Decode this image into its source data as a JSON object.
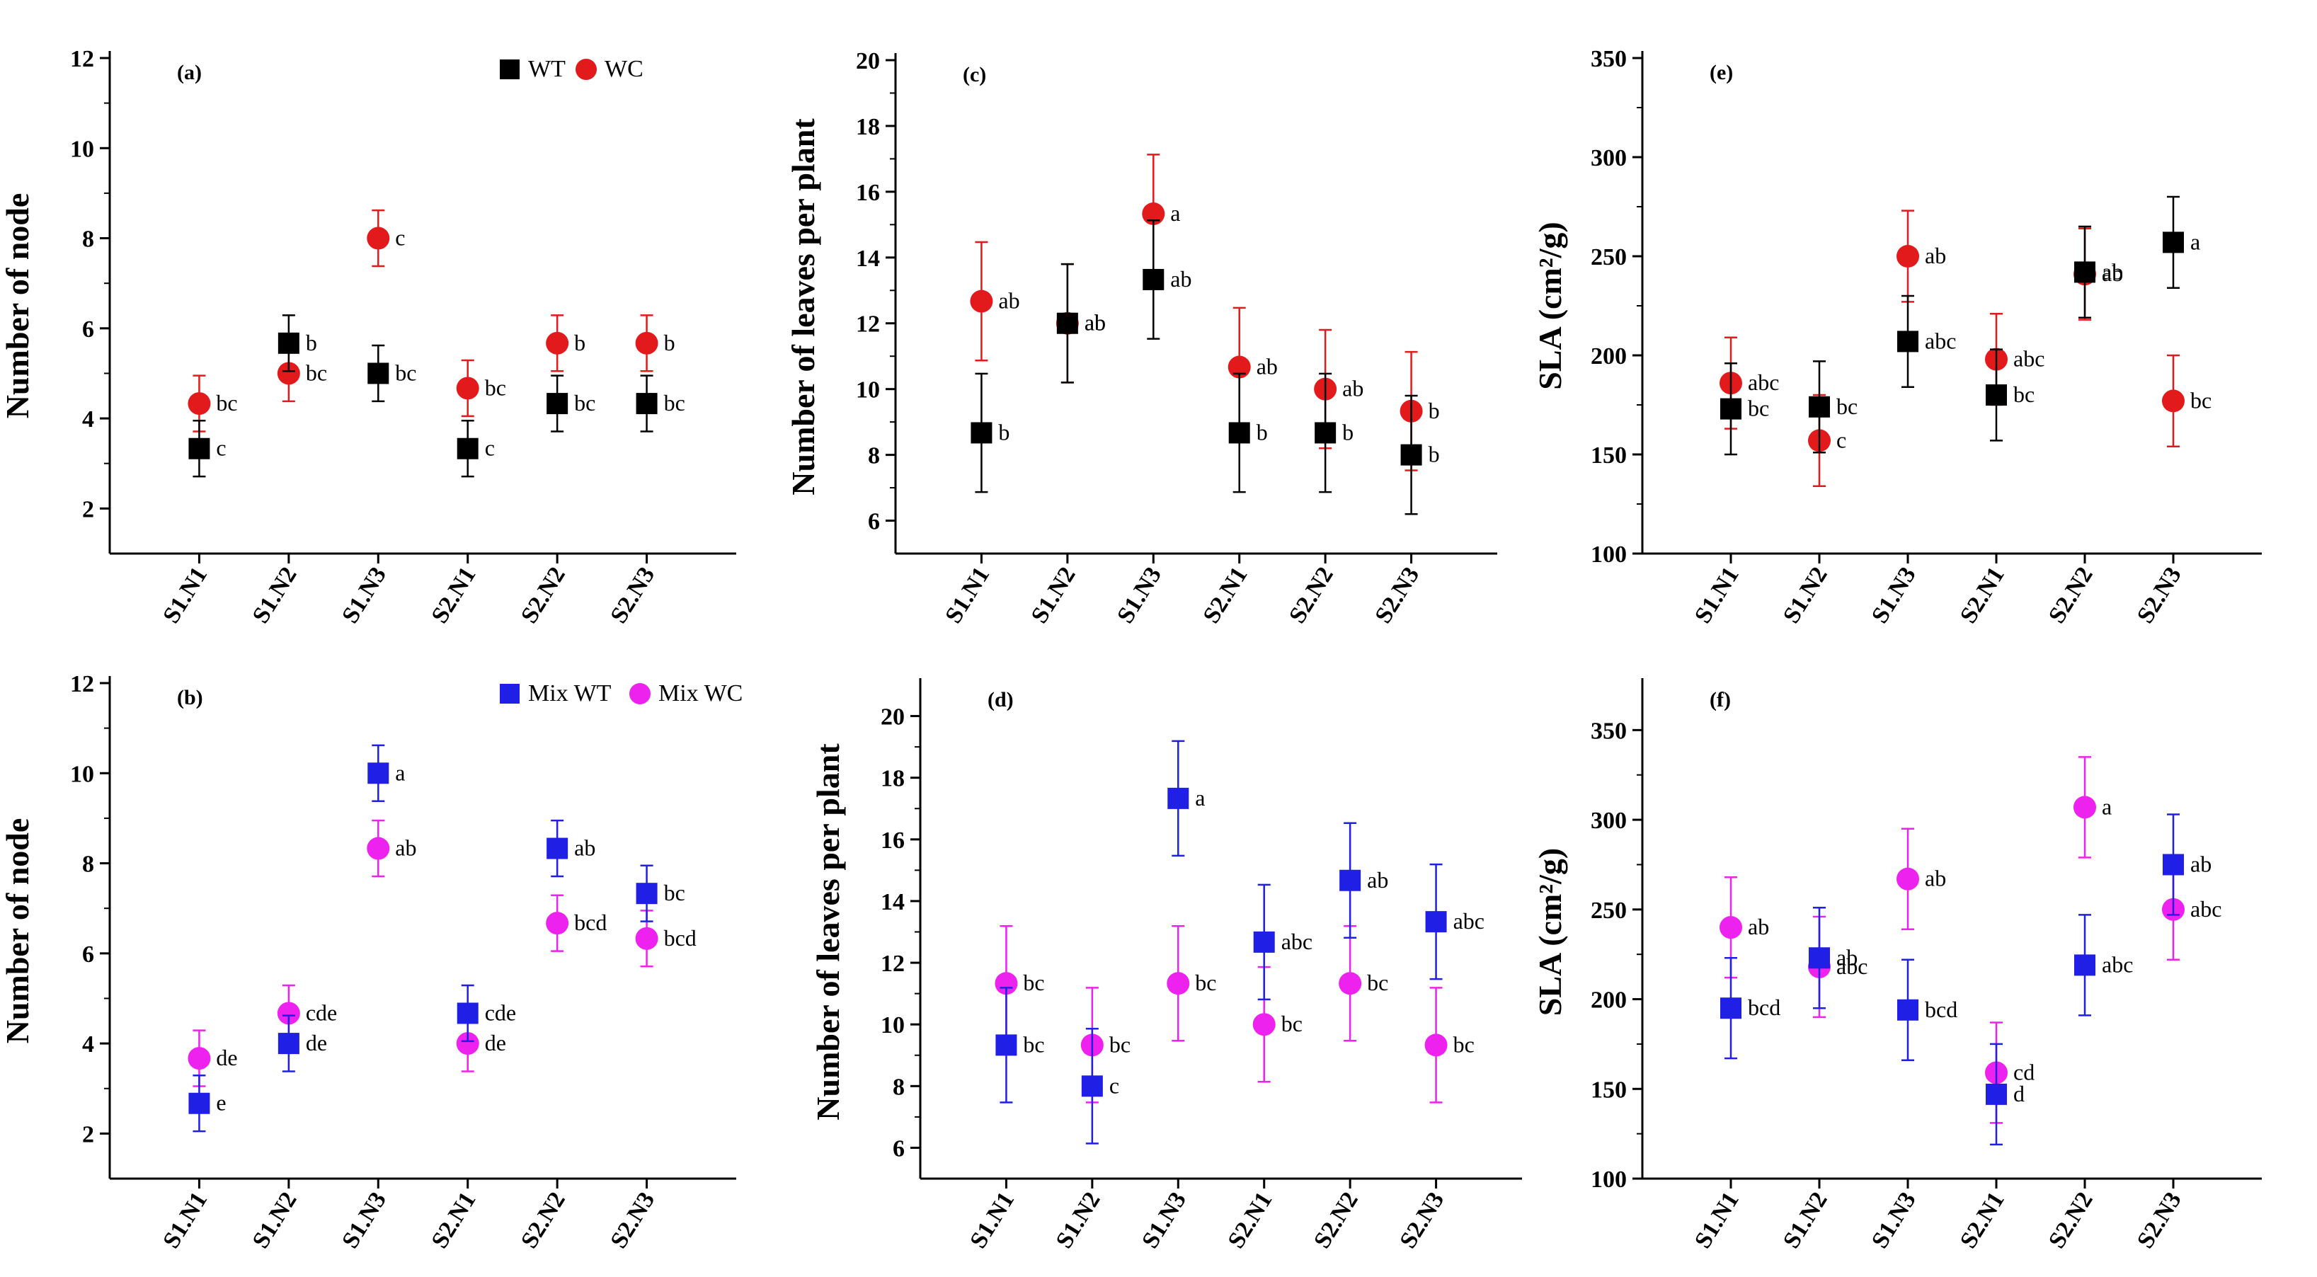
{
  "figure": {
    "categories": [
      "S1.N1",
      "S1.N2",
      "S1.N3",
      "S2.N1",
      "S2.N2",
      "S2.N3"
    ]
  },
  "chart_data": [
    {
      "type": "scatter",
      "panel_label": "(a)",
      "ylabel": "Number of node",
      "ylim": [
        1,
        12
      ],
      "yticks": [
        2,
        4,
        6,
        8,
        10,
        12
      ],
      "categories": [
        "S1.N1",
        "S1.N2",
        "S1.N3",
        "S2.N1",
        "S2.N2",
        "S2.N3"
      ],
      "legend": [
        "WT",
        "WC"
      ],
      "series": [
        {
          "name": "WT",
          "marker": "square",
          "color": "#000000",
          "values": [
            3.33,
            5.67,
            5.0,
            3.33,
            4.33,
            4.33
          ],
          "errors": [
            0.62,
            0.62,
            0.62,
            0.62,
            0.62,
            0.62
          ],
          "letters": [
            "c",
            "b",
            "bc",
            "c",
            "bc",
            "bc"
          ]
        },
        {
          "name": "WC",
          "marker": "circle",
          "color": "#e31a1c",
          "values": [
            4.33,
            5.0,
            8.0,
            4.67,
            5.67,
            5.67
          ],
          "errors": [
            0.62,
            0.62,
            0.62,
            0.62,
            0.62,
            0.62
          ],
          "letters": [
            "bc",
            "bc",
            "c",
            "bc",
            "b",
            "b"
          ]
        }
      ]
    },
    {
      "type": "scatter",
      "panel_label": "(b)",
      "ylabel": "Number of node",
      "ylim": [
        1,
        12
      ],
      "yticks": [
        2,
        4,
        6,
        8,
        10,
        12
      ],
      "categories": [
        "S1.N1",
        "S1.N2",
        "S1.N3",
        "S2.N1",
        "S2.N2",
        "S2.N3"
      ],
      "legend": [
        "Mix WT",
        "Mix WC"
      ],
      "series": [
        {
          "name": "Mix WT",
          "marker": "square",
          "color": "#1f1fe6",
          "values": [
            2.67,
            4.0,
            10.0,
            4.67,
            8.33,
            7.33
          ],
          "errors": [
            0.62,
            0.62,
            0.62,
            0.62,
            0.62,
            0.62
          ],
          "letters": [
            "e",
            "de",
            "a",
            "cde",
            "ab",
            "bc"
          ]
        },
        {
          "name": "Mix WC",
          "marker": "circle",
          "color": "#ee22ee",
          "values": [
            3.67,
            4.67,
            8.33,
            4.0,
            6.67,
            6.33
          ],
          "errors": [
            0.62,
            0.62,
            0.62,
            0.62,
            0.62,
            0.62
          ],
          "letters": [
            "de",
            "cde",
            "ab",
            "de",
            "bcd",
            "bcd"
          ]
        }
      ]
    },
    {
      "type": "scatter",
      "panel_label": "(c)",
      "ylabel": "Number of leaves per plant",
      "ylim": [
        5,
        20
      ],
      "yticks": [
        6,
        8,
        10,
        12,
        14,
        16,
        18,
        20
      ],
      "categories": [
        "S1.N1",
        "S1.N2",
        "S1.N3",
        "S2.N1",
        "S2.N2",
        "S2.N3"
      ],
      "series": [
        {
          "name": "WT",
          "marker": "square",
          "color": "#000000",
          "values": [
            8.67,
            12.0,
            13.33,
            8.67,
            8.67,
            8.0
          ],
          "errors": [
            1.8,
            1.8,
            1.8,
            1.8,
            1.8,
            1.8
          ],
          "letters": [
            "b",
            "ab",
            "ab",
            "b",
            "b",
            "b"
          ]
        },
        {
          "name": "WC",
          "marker": "circle",
          "color": "#e31a1c",
          "values": [
            12.67,
            12.0,
            15.33,
            10.67,
            10.0,
            9.33
          ],
          "errors": [
            1.8,
            1.8,
            1.8,
            1.8,
            1.8,
            1.8
          ],
          "letters": [
            "ab",
            "ab",
            "a",
            "ab",
            "ab",
            "b"
          ]
        }
      ]
    },
    {
      "type": "scatter",
      "panel_label": "(d)",
      "ylabel": "Number of leaves per plant",
      "ylim": [
        5,
        21
      ],
      "yticks": [
        6,
        8,
        10,
        12,
        14,
        16,
        18,
        20
      ],
      "categories": [
        "S1.N1",
        "S1.N2",
        "S1.N3",
        "S2.N1",
        "S2.N2",
        "S2.N3"
      ],
      "series": [
        {
          "name": "Mix WT",
          "marker": "square",
          "color": "#1f1fe6",
          "values": [
            9.33,
            8.0,
            17.33,
            12.67,
            14.67,
            13.33
          ],
          "errors": [
            1.86,
            1.86,
            1.86,
            1.86,
            1.86,
            1.86
          ],
          "letters": [
            "bc",
            "c",
            "a",
            "abc",
            "ab",
            "abc"
          ]
        },
        {
          "name": "Mix WC",
          "marker": "circle",
          "color": "#ee22ee",
          "values": [
            11.33,
            9.33,
            11.33,
            10.0,
            11.33,
            9.33
          ],
          "errors": [
            1.86,
            1.86,
            1.86,
            1.86,
            1.86,
            1.86
          ],
          "letters": [
            "bc",
            "bc",
            "bc",
            "bc",
            "bc",
            "bc"
          ]
        }
      ]
    },
    {
      "type": "scatter",
      "panel_label": "(e)",
      "ylabel": "SLA (cm²/g)",
      "ylim": [
        100,
        350
      ],
      "yticks": [
        100,
        150,
        200,
        250,
        300,
        350
      ],
      "categories": [
        "S1.N1",
        "S1.N2",
        "S1.N3",
        "S2.N1",
        "S2.N2",
        "S2.N3"
      ],
      "series": [
        {
          "name": "WT",
          "marker": "square",
          "color": "#000000",
          "values": [
            173,
            174,
            207,
            180,
            242,
            257
          ],
          "errors": [
            23,
            23,
            23,
            23,
            23,
            23
          ],
          "letters": [
            "bc",
            "bc",
            "abc",
            "bc",
            "ab",
            "a"
          ]
        },
        {
          "name": "WC",
          "marker": "circle",
          "color": "#e31a1c",
          "values": [
            186,
            157,
            250,
            198,
            241,
            177
          ],
          "errors": [
            23,
            23,
            23,
            23,
            23,
            23
          ],
          "letters": [
            "abc",
            "c",
            "ab",
            "abc",
            "ab",
            "bc"
          ]
        }
      ]
    },
    {
      "type": "scatter",
      "panel_label": "(f)",
      "ylabel": "SLA (cm²/g)",
      "ylim": [
        100,
        375
      ],
      "yticks": [
        100,
        150,
        200,
        250,
        300,
        350
      ],
      "categories": [
        "S1.N1",
        "S1.N2",
        "S1.N3",
        "S2.N1",
        "S2.N2",
        "S2.N3"
      ],
      "series": [
        {
          "name": "Mix WT",
          "marker": "square",
          "color": "#1f1fe6",
          "values": [
            195,
            223,
            194,
            147,
            219,
            275
          ],
          "errors": [
            28,
            28,
            28,
            28,
            28,
            28
          ],
          "letters": [
            "bcd",
            "ab",
            "bcd",
            "d",
            "abc",
            "ab"
          ]
        },
        {
          "name": "Mix WC",
          "marker": "circle",
          "color": "#ee22ee",
          "values": [
            240,
            218,
            267,
            159,
            307,
            250
          ],
          "errors": [
            28,
            28,
            28,
            28,
            28,
            28
          ],
          "letters": [
            "ab",
            "abc",
            "ab",
            "cd",
            "a",
            "abc"
          ]
        }
      ]
    }
  ]
}
